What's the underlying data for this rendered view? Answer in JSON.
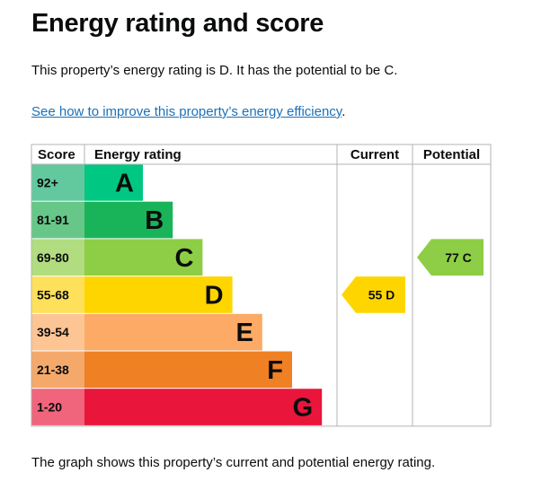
{
  "page": {
    "title": "Energy rating and score",
    "intro": "This property’s energy rating is D. It has the potential to be C.",
    "link_text": "See how to improve this property’s energy efficiency",
    "link_suffix": ".",
    "footer": "The graph shows this property’s current and potential energy rating."
  },
  "chart_data": {
    "type": "table",
    "headers": {
      "score": "Score",
      "rating": "Energy rating",
      "current": "Current",
      "potential": "Potential"
    },
    "bands": [
      {
        "score": "92+",
        "letter": "A",
        "color": "#00c781",
        "score_bg": "#62c89d"
      },
      {
        "score": "81-91",
        "letter": "B",
        "color": "#19b459",
        "score_bg": "#66c788"
      },
      {
        "score": "69-80",
        "letter": "C",
        "color": "#8dce46",
        "score_bg": "#b1dc7f"
      },
      {
        "score": "55-68",
        "letter": "D",
        "color": "#ffd500",
        "score_bg": "#ffe05a"
      },
      {
        "score": "39-54",
        "letter": "E",
        "color": "#fcaa65",
        "score_bg": "#fdc594"
      },
      {
        "score": "21-38",
        "letter": "F",
        "color": "#ef8023",
        "score_bg": "#f4a96a"
      },
      {
        "score": "1-20",
        "letter": "G",
        "color": "#e9153b",
        "score_bg": "#f0647c"
      }
    ],
    "current": {
      "value": 55,
      "letter": "D",
      "color": "#ffd500",
      "label": "55  D"
    },
    "potential": {
      "value": 77,
      "letter": "C",
      "color": "#8dce46",
      "label": "77  C"
    }
  }
}
